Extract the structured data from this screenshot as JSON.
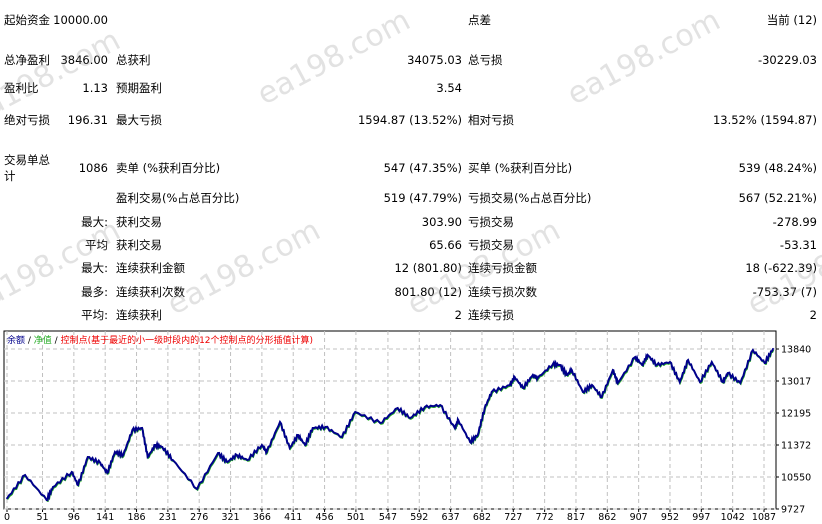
{
  "report": {
    "rows": [
      {
        "l1": "起始资金",
        "v1": "10000.00",
        "l2": "",
        "v2": "",
        "l3": "点差",
        "v3": "当前 (12)"
      },
      {
        "l1": "总净盈利",
        "v1": "3846.00",
        "l2": "总获利",
        "v2": "34075.03",
        "l3": "总亏损",
        "v3": "-30229.03"
      },
      {
        "l1": "盈利比",
        "v1": "1.13",
        "l2": "预期盈利",
        "v2": "3.54",
        "l3": "",
        "v3": ""
      },
      {
        "l1": "绝对亏损",
        "v1": "196.31",
        "l2": "最大亏损",
        "v2": "1594.87 (13.52%)",
        "l3": "相对亏损",
        "v3": "13.52% (1594.87)"
      },
      {
        "l1": "交易单总计",
        "v1": "1086",
        "l2": "卖单 (%获利百分比)",
        "v2": "547 (47.35%)",
        "l3": "买单 (%获利百分比)",
        "v3": "539 (48.24%)"
      },
      {
        "l1": "",
        "v1": "",
        "l2": "盈利交易(%占总百分比)",
        "v2": "519 (47.79%)",
        "l3": "亏损交易(%占总百分比)",
        "v3": "567 (52.21%)"
      },
      {
        "l1": "",
        "v1": "最大:",
        "l2": "获利交易",
        "v2": "303.90",
        "l3": "亏损交易",
        "v3": "-278.99"
      },
      {
        "l1": "",
        "v1": "平均",
        "l2": "获利交易",
        "v2": "65.66",
        "l3": "亏损交易",
        "v3": "-53.31"
      },
      {
        "l1": "",
        "v1": "最大:",
        "l2": "连续获利金额",
        "v2": "12 (801.80)",
        "l3": "连续亏损金额",
        "v3": "18 (-622.39)"
      },
      {
        "l1": "",
        "v1": "最多:",
        "l2": "连续获利次数",
        "v2": "801.80 (12)",
        "l3": "连续亏损次数",
        "v3": "-753.37 (7)"
      },
      {
        "l1": "",
        "v1": "平均:",
        "l2": "连续获利",
        "v2": "2",
        "l3": "连续亏损",
        "v3": "2"
      }
    ]
  },
  "watermark": "ea198.com",
  "chart_data": {
    "type": "line",
    "legend": {
      "balance": "余额",
      "sep1": " / ",
      "equity": "净值",
      "sep2": " / ",
      "control": "控制点(基于最近的小一级时段内的12个控制点的分形插值计算)"
    },
    "colors": {
      "balance": "#00008b",
      "equity": "#22aa22",
      "control": "#ee0000",
      "grid": "#c0c0c0"
    },
    "xticks": [
      0,
      51,
      96,
      141,
      186,
      231,
      276,
      321,
      366,
      411,
      456,
      501,
      547,
      592,
      637,
      682,
      727,
      772,
      817,
      862,
      907,
      952,
      997,
      1042,
      1087
    ],
    "yticks": [
      9727,
      10550,
      11372,
      12195,
      13017,
      13840
    ],
    "xlim": [
      -4,
      1104
    ],
    "ylim": [
      9727,
      14010
    ],
    "grid": true,
    "series": [
      {
        "name": "余额",
        "x": [
          0,
          26,
          57,
          66,
          93,
          102,
          116,
          134,
          144,
          155,
          167,
          180,
          194,
          202,
          213,
          223,
          238,
          273,
          303,
          316,
          330,
          345,
          366,
          373,
          392,
          406,
          418,
          428,
          439,
          457,
          481,
          500,
          536,
          561,
          579,
          600,
          622,
          643,
          648,
          665,
          676,
          686,
          696,
          722,
          729,
          741,
          755,
          762,
          784,
          794,
          804,
          811,
          827,
          840,
          854,
          870,
          877,
          902,
          912,
          920,
          933,
          952,
          966,
          978,
          995,
          1012,
          1028,
          1035,
          1053,
          1071,
          1088,
          1100
        ],
        "y": [
          10000,
          10600,
          9958,
          10292,
          10678,
          10344,
          11063,
          10909,
          10652,
          11192,
          11115,
          11757,
          11809,
          11063,
          11372,
          11320,
          10986,
          10241,
          11166,
          10935,
          11115,
          10986,
          11372,
          11192,
          11963,
          11295,
          11629,
          11372,
          11809,
          11835,
          11577,
          12220,
          11937,
          12323,
          12066,
          12348,
          12400,
          11809,
          12014,
          11449,
          11629,
          12323,
          12734,
          12914,
          13119,
          12837,
          13171,
          13094,
          13454,
          13428,
          13171,
          13299,
          12734,
          12914,
          12605,
          13299,
          12965,
          13633,
          13428,
          13685,
          13428,
          13505,
          12991,
          13556,
          12991,
          13505,
          12991,
          13222,
          12965,
          13813,
          13479,
          13846
        ]
      }
    ]
  }
}
